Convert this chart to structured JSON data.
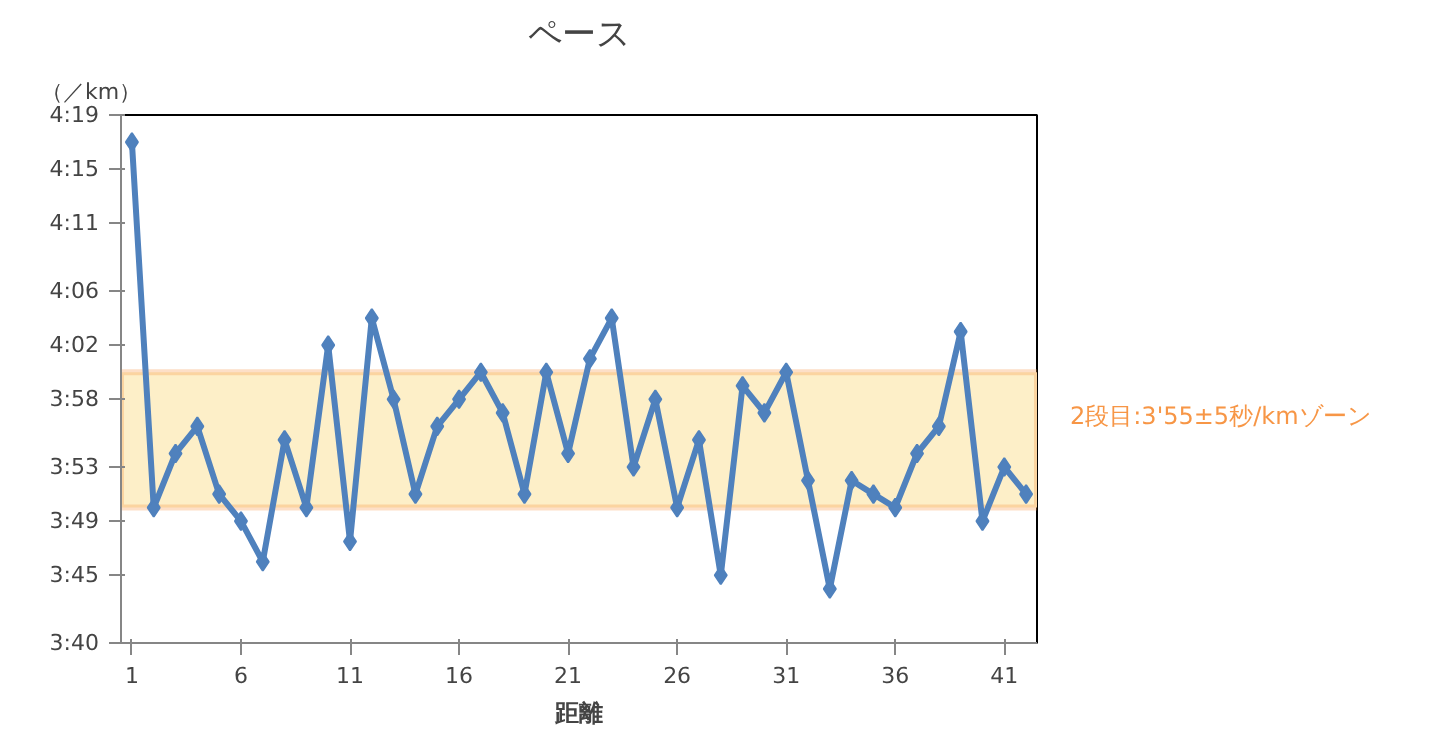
{
  "chart_data": {
    "type": "line",
    "title": "ペース",
    "xlabel": "距離",
    "ylabel": "（／km）",
    "x": [
      1,
      2,
      3,
      4,
      5,
      6,
      7,
      8,
      9,
      10,
      11,
      12,
      13,
      14,
      15,
      16,
      17,
      18,
      19,
      20,
      21,
      22,
      23,
      24,
      25,
      26,
      27,
      28,
      29,
      30,
      31,
      32,
      33,
      34,
      35,
      36,
      37,
      38,
      39,
      40,
      41,
      42
    ],
    "series": [
      {
        "color": "#4f81bd",
        "values": [
          257,
          230,
          234,
          236,
          231,
          229,
          226,
          235,
          230,
          242,
          227.5,
          244,
          238,
          231,
          236,
          238,
          240,
          237,
          231,
          240,
          234,
          241,
          244,
          233,
          238,
          230,
          235,
          225,
          239,
          237,
          240,
          232,
          224,
          232,
          231,
          230,
          234,
          236,
          243,
          229,
          233,
          231
        ]
      }
    ],
    "xlim": [
      0.5,
      42.5
    ],
    "xticks": [
      1,
      6,
      11,
      16,
      21,
      26,
      31,
      36,
      41
    ],
    "ylim": [
      220,
      259
    ],
    "yticks": [
      {
        "value": 220,
        "label": "3:40"
      },
      {
        "value": 225,
        "label": "3:45"
      },
      {
        "value": 229,
        "label": "3:49"
      },
      {
        "value": 233,
        "label": "3:53"
      },
      {
        "value": 238,
        "label": "3:58"
      },
      {
        "value": 242,
        "label": "4:02"
      },
      {
        "value": 246,
        "label": "4:06"
      },
      {
        "value": 251,
        "label": "4:11"
      },
      {
        "value": 255,
        "label": "4:15"
      },
      {
        "value": 259,
        "label": "4:19"
      }
    ],
    "bands": [
      {
        "axis": "y",
        "from": 230,
        "to": 240,
        "label": "2段目:3'55±5秒/kmゾーン",
        "color": "#f79646"
      }
    ],
    "marker": "diamond",
    "line_style": "solid",
    "grid": false
  }
}
